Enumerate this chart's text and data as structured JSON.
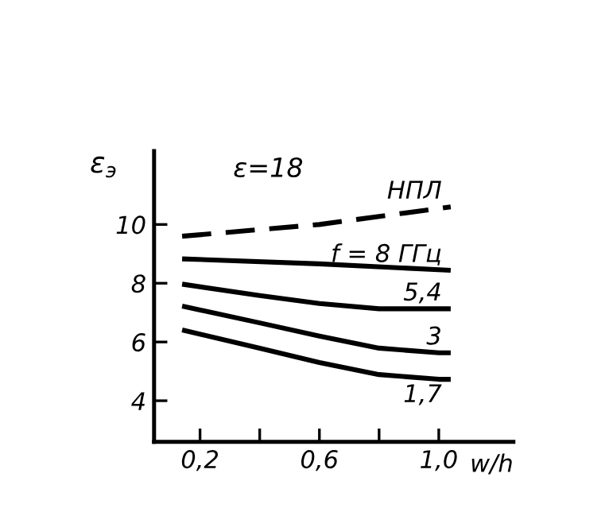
{
  "chart_data": {
    "type": "line",
    "ylabel": "ε$_{э}$",
    "xlabel": "w/h",
    "annotations": [
      "ε=18"
    ],
    "xlim": [
      0.046,
      1.25
    ],
    "ylim": [
      2.6,
      12.5
    ],
    "xticks": [
      {
        "value": 0.2,
        "label": "0,2"
      },
      {
        "value": 0.4,
        "label": null
      },
      {
        "value": 0.6,
        "label": "0,6"
      },
      {
        "value": 0.8,
        "label": null
      },
      {
        "value": 1.0,
        "label": "1,0"
      }
    ],
    "yticks": [
      4,
      6,
      8,
      10
    ],
    "grid": false,
    "legend": false,
    "marker": "none",
    "series": [
      {
        "name": "НПЛ",
        "color": "#000000",
        "line_style": "dashed",
        "x": [
          0.14,
          0.6,
          1.04
        ],
        "values": [
          9.6,
          10.0,
          10.6
        ]
      },
      {
        "name": "f = 8 ГГц",
        "color": "#000000",
        "line_style": "solid",
        "x": [
          0.14,
          0.6,
          1.04
        ],
        "values": [
          8.83,
          8.66,
          8.44
        ]
      },
      {
        "name": "5,4",
        "color": "#000000",
        "line_style": "solid",
        "x": [
          0.14,
          0.4,
          0.6,
          0.8,
          1.04
        ],
        "values": [
          7.97,
          7.58,
          7.31,
          7.13,
          7.13
        ]
      },
      {
        "name": "3",
        "color": "#000000",
        "line_style": "solid",
        "x": [
          0.14,
          0.4,
          0.6,
          0.8,
          1.0,
          1.04
        ],
        "values": [
          7.22,
          6.65,
          6.2,
          5.79,
          5.63,
          5.63
        ]
      },
      {
        "name": "1,7",
        "color": "#000000",
        "line_style": "solid",
        "x": [
          0.14,
          0.4,
          0.6,
          0.8,
          1.0,
          1.04
        ],
        "values": [
          6.41,
          5.79,
          5.3,
          4.89,
          4.73,
          4.73
        ]
      }
    ]
  }
}
